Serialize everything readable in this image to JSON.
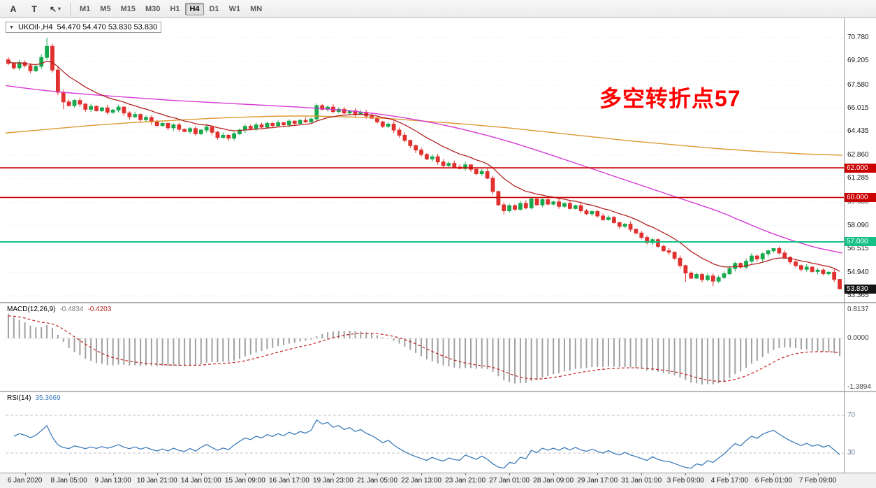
{
  "toolbar": {
    "tools": [
      {
        "name": "text-label-tool",
        "label": "A"
      },
      {
        "name": "text-tool",
        "label": "T"
      },
      {
        "name": "drawing-tools-dropdown",
        "label": "↖",
        "caret": "▾"
      }
    ],
    "timeframes": [
      "M1",
      "M5",
      "M15",
      "M30",
      "H1",
      "H4",
      "D1",
      "W1",
      "MN"
    ],
    "active_timeframe": "H4"
  },
  "chart": {
    "title": {
      "symbol": "UKOil·,H4",
      "ohlc": "54.470 54.470 53.830 53.830"
    },
    "annotation": {
      "text": "多空转折点57",
      "color": "#ff0000"
    },
    "price_axis": [
      "70.780",
      "69.205",
      "67.580",
      "66.015",
      "64.435",
      "62.860",
      "61.285",
      "59.685",
      "58.090",
      "56.515",
      "54.940",
      "53.365"
    ],
    "levels": [
      {
        "price": 62.0,
        "label": "62.000",
        "color": "#cc0000"
      },
      {
        "price": 60.0,
        "label": "60.000",
        "color": "#cc0000"
      },
      {
        "price": 57.0,
        "label": "57.000",
        "color": "#16c186"
      }
    ],
    "current_price": {
      "label": "53.830",
      "value": 53.83,
      "badge_bg": "#141414"
    },
    "time_axis": [
      "6 Jan 2020",
      "8 Jan 05:00",
      "9 Jan 13:00",
      "10 Jan 21:00",
      "14 Jan 01:00",
      "15 Jan 09:00",
      "16 Jan 17:00",
      "19 Jan 23:00",
      "21 Jan 05:00",
      "22 Jan 13:00",
      "23 Jan 21:00",
      "27 Jan 01:00",
      "28 Jan 09:00",
      "29 Jan 17:00",
      "31 Jan 01:00",
      "3 Feb 09:00",
      "4 Feb 17:00",
      "6 Feb 01:00",
      "7 Feb 09:00"
    ]
  },
  "macd_panel": {
    "name": "MACD(12,26,9)",
    "main_value": "-0.4834",
    "signal_value": "-0.4203",
    "scale_labels": [
      "0.8137",
      "0.0000",
      "-1.3894"
    ]
  },
  "rsi_panel": {
    "name": "RSI(14)",
    "value": "35.3669",
    "scale_labels": [
      "70",
      "30"
    ]
  },
  "chart_data": {
    "type": "candlestick",
    "symbol": "UKOil",
    "timeframe": "H4",
    "title": "UKOil H4 with MACD(12,26,9) and RSI(14)",
    "last_ohlc": {
      "open": 54.47,
      "high": 54.47,
      "low": 53.83,
      "close": 53.83
    },
    "y_range": [
      53.0,
      71.5
    ],
    "up_color": "#17a94d",
    "down_color": "#e0312e",
    "first_open": 69.3,
    "closes": [
      69.05,
      68.75,
      69.1,
      68.9,
      68.55,
      68.85,
      69.45,
      70.2,
      68.6,
      67.1,
      66.45,
      66.2,
      66.55,
      66.3,
      65.95,
      66.15,
      65.85,
      66.05,
      65.75,
      65.9,
      66.1,
      65.7,
      65.45,
      65.6,
      65.25,
      65.4,
      65.1,
      64.85,
      65.0,
      64.7,
      64.9,
      64.6,
      64.45,
      64.65,
      64.3,
      64.55,
      64.75,
      64.4,
      64.05,
      64.2,
      64.0,
      64.3,
      64.55,
      64.8,
      64.65,
      64.9,
      64.75,
      65.0,
      64.85,
      65.05,
      64.9,
      65.15,
      65.0,
      65.2,
      65.1,
      65.3,
      66.2,
      65.95,
      66.1,
      65.8,
      65.95,
      65.7,
      65.85,
      65.6,
      65.75,
      65.5,
      65.35,
      65.1,
      64.8,
      64.95,
      64.55,
      64.2,
      63.85,
      63.5,
      63.2,
      62.9,
      62.6,
      62.75,
      62.4,
      62.15,
      62.3,
      62.05,
      61.95,
      62.2,
      61.9,
      61.6,
      61.75,
      61.3,
      60.4,
      59.5,
      59.1,
      59.45,
      59.2,
      59.6,
      59.3,
      59.9,
      59.5,
      59.85,
      59.55,
      59.7,
      59.4,
      59.6,
      59.25,
      59.45,
      59.1,
      58.9,
      59.05,
      58.75,
      58.5,
      58.65,
      58.3,
      58.05,
      58.2,
      57.85,
      57.6,
      57.3,
      56.95,
      57.15,
      56.7,
      56.4,
      56.3,
      55.9,
      55.4,
      54.9,
      54.55,
      54.8,
      54.45,
      54.7,
      54.35,
      54.6,
      54.85,
      55.2,
      55.55,
      55.3,
      55.7,
      56.05,
      55.85,
      56.2,
      56.4,
      56.55,
      56.25,
      55.95,
      55.65,
      55.4,
      55.15,
      55.3,
      55.0,
      55.1,
      54.85,
      54.95,
      54.47,
      53.83
    ],
    "wick_overrides": {
      "7": {
        "h": 70.78
      },
      "10": {
        "l": 65.95
      },
      "56": {
        "h": 66.35
      },
      "90": {
        "l": 58.85
      },
      "123": {
        "l": 54.3
      },
      "128": {
        "l": 54.0
      },
      "150": {
        "h": 55.2
      },
      "151": {
        "h": 54.47,
        "l": 53.83
      }
    },
    "horizontal_levels": [
      {
        "price": 62.0,
        "color": "#cc0000",
        "width": 1.6
      },
      {
        "price": 60.0,
        "color": "#cc0000",
        "width": 1.6
      },
      {
        "price": 57.0,
        "color": "#16c186",
        "width": 2.0
      }
    ],
    "moving_averages": {
      "fast": {
        "name": "MA-fast",
        "type": "ema-of-closes",
        "period": 13,
        "color": "#b22222"
      },
      "medium": {
        "name": "MA-medium",
        "color": "#d63ad6",
        "points": [
          [
            0,
            67.55
          ],
          [
            0.05,
            67.2
          ],
          [
            0.1,
            66.95
          ],
          [
            0.15,
            66.75
          ],
          [
            0.2,
            66.55
          ],
          [
            0.25,
            66.4
          ],
          [
            0.3,
            66.25
          ],
          [
            0.35,
            66.1
          ],
          [
            0.4,
            65.9
          ],
          [
            0.45,
            65.6
          ],
          [
            0.5,
            65.15
          ],
          [
            0.55,
            64.55
          ],
          [
            0.6,
            63.8
          ],
          [
            0.65,
            62.9
          ],
          [
            0.7,
            61.95
          ],
          [
            0.75,
            61.0
          ],
          [
            0.8,
            60.05
          ],
          [
            0.85,
            59.1
          ],
          [
            0.88,
            58.4
          ],
          [
            0.91,
            57.7
          ],
          [
            0.94,
            57.1
          ],
          [
            0.97,
            56.6
          ],
          [
            1,
            56.25
          ]
        ]
      },
      "slow": {
        "name": "MA-slow",
        "color": "#dd9933",
        "points": [
          [
            0,
            64.35
          ],
          [
            0.05,
            64.6
          ],
          [
            0.1,
            64.85
          ],
          [
            0.15,
            65.05
          ],
          [
            0.2,
            65.2
          ],
          [
            0.25,
            65.35
          ],
          [
            0.3,
            65.45
          ],
          [
            0.35,
            65.5
          ],
          [
            0.4,
            65.45
          ],
          [
            0.45,
            65.35
          ],
          [
            0.5,
            65.15
          ],
          [
            0.55,
            64.95
          ],
          [
            0.6,
            64.7
          ],
          [
            0.65,
            64.4
          ],
          [
            0.7,
            64.1
          ],
          [
            0.75,
            63.8
          ],
          [
            0.8,
            63.55
          ],
          [
            0.85,
            63.3
          ],
          [
            0.9,
            63.1
          ],
          [
            0.95,
            62.95
          ],
          [
            1,
            62.85
          ]
        ]
      }
    },
    "indicators": {
      "macd": {
        "fast": 12,
        "slow": 26,
        "signal": 9,
        "current_main": -0.4834,
        "current_signal": -0.4203,
        "scale_max": 0.8137,
        "scale_min": -1.3894,
        "histogram_color": "#a0a0a0",
        "signal_color": "#c02020"
      },
      "rsi": {
        "period": 14,
        "current": 35.3669,
        "levels": [
          30,
          70
        ],
        "line_color": "#3f7cba",
        "level_color": "#c0c0c0"
      }
    }
  }
}
